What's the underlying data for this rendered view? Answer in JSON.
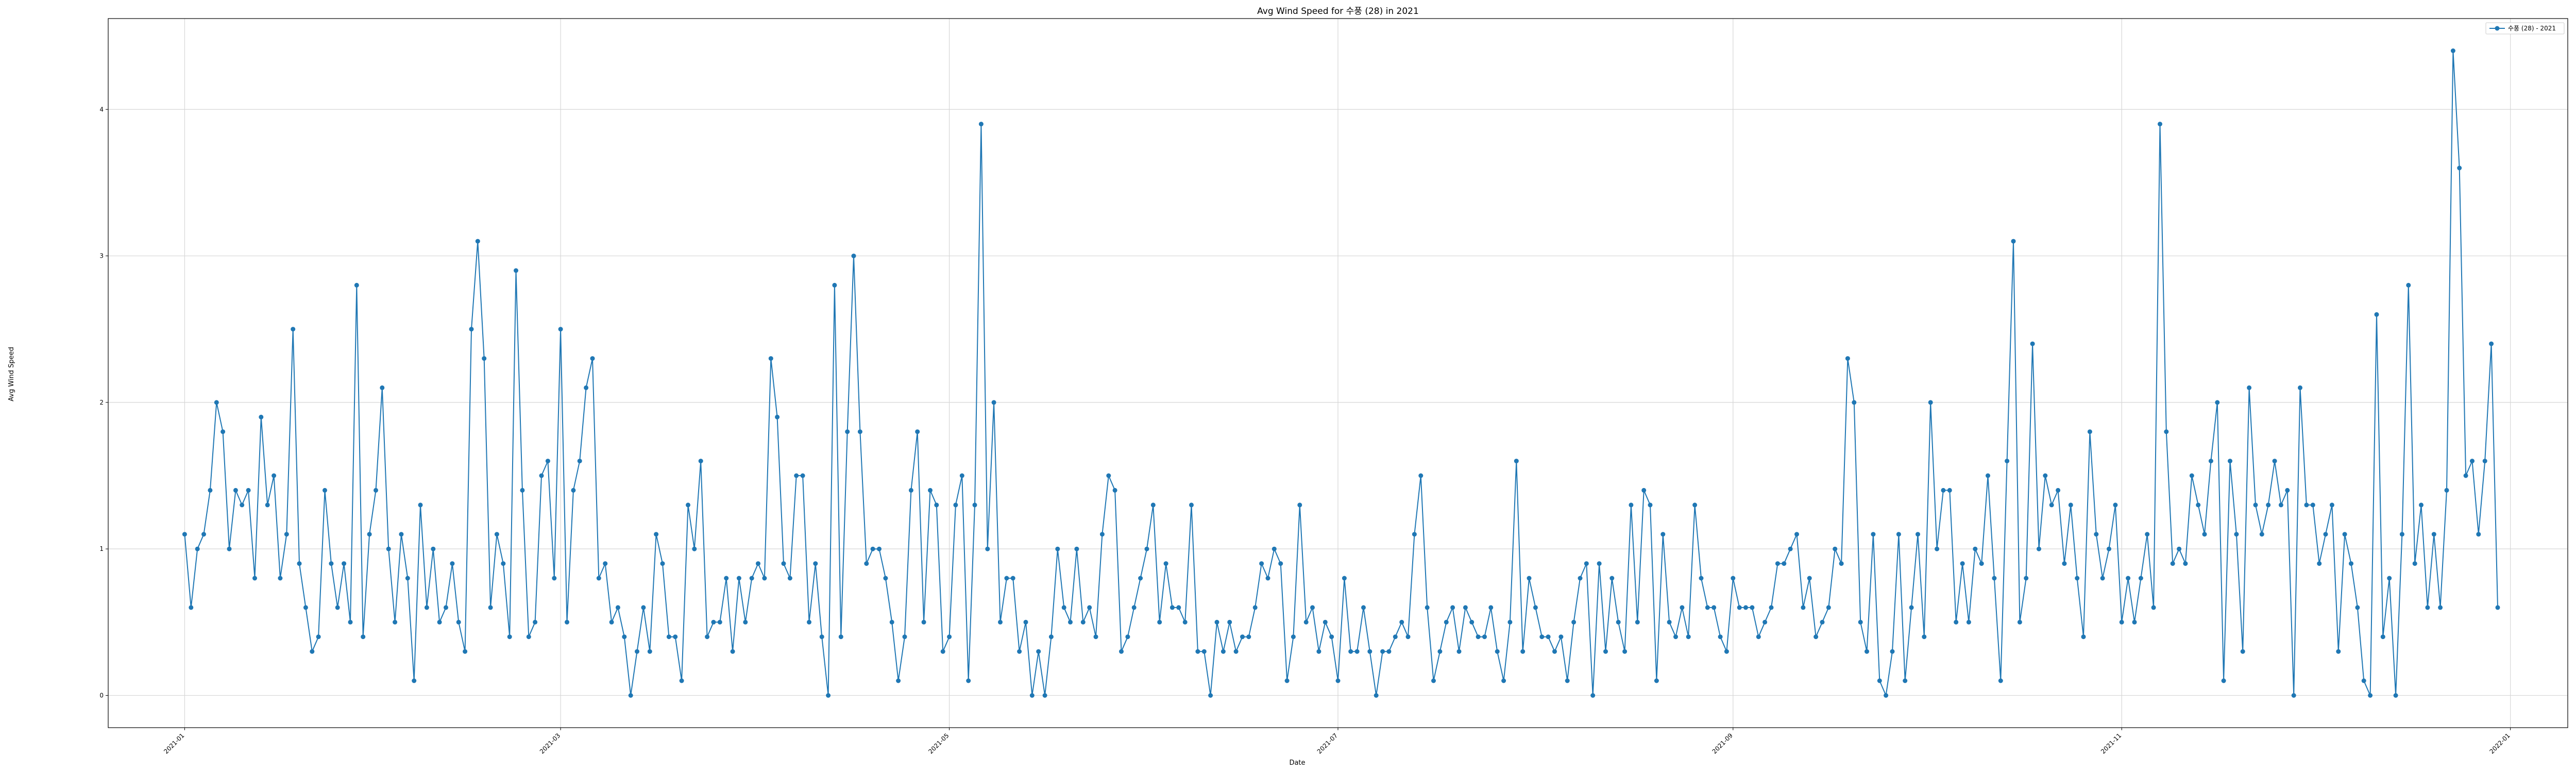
{
  "chart_data": {
    "type": "line",
    "title": "Avg Wind Speed for 수풍 (28) in 2021",
    "xlabel": "Date",
    "ylabel": "Avg Wind Speed",
    "xlim": [
      "2020-12-20",
      "2022-01-10"
    ],
    "ylim": [
      -0.22,
      4.62
    ],
    "grid": true,
    "legend_position": "upper right",
    "series_color": "#1f77b4",
    "xticks": [
      "2021-01-01",
      "2021-03-01",
      "2021-05-01",
      "2021-07-01",
      "2021-09-01",
      "2021-11-01",
      "2022-01-01"
    ],
    "xtick_labels": [
      "2021-01",
      "2021-03",
      "2021-05",
      "2021-07",
      "2021-09",
      "2021-11",
      "2022-01"
    ],
    "yticks": [
      0,
      1,
      2,
      3,
      4
    ],
    "series": [
      {
        "name": "수풍 (28) - 2021",
        "start_date": "2021-01-01",
        "step_days": 1,
        "values": [
          1.1,
          0.6,
          1.0,
          1.1,
          1.4,
          2.0,
          1.8,
          1.0,
          1.4,
          1.3,
          1.4,
          0.8,
          1.9,
          1.3,
          1.5,
          0.8,
          1.1,
          2.5,
          0.9,
          0.6,
          0.3,
          0.4,
          1.4,
          0.9,
          0.6,
          0.9,
          0.5,
          2.8,
          0.4,
          1.1,
          1.4,
          2.1,
          1.0,
          0.5,
          1.1,
          0.8,
          0.1,
          1.3,
          0.6,
          1.0,
          0.5,
          0.6,
          0.9,
          0.5,
          0.3,
          2.5,
          3.1,
          2.3,
          0.6,
          1.1,
          0.9,
          0.4,
          2.9,
          1.4,
          0.4,
          0.5,
          1.5,
          1.6,
          0.8,
          2.5,
          0.5,
          1.4,
          1.6,
          2.1,
          2.3,
          0.8,
          0.9,
          0.5,
          0.6,
          0.4,
          0.0,
          0.3,
          0.6,
          0.3,
          1.1,
          0.9,
          0.4,
          0.4,
          0.1,
          1.3,
          1.0,
          1.6,
          0.4,
          0.5,
          0.5,
          0.8,
          0.3,
          0.8,
          0.5,
          0.8,
          0.9,
          0.8,
          2.3,
          1.9,
          0.9,
          0.8,
          1.5,
          1.5,
          0.5,
          0.9,
          0.4,
          0.0,
          2.8,
          0.4,
          1.8,
          3.0,
          1.8,
          0.9,
          1.0,
          1.0,
          0.8,
          0.5,
          0.1,
          0.4,
          1.4,
          1.8,
          0.5,
          1.4,
          1.3,
          0.3,
          0.4,
          1.3,
          1.5,
          0.1,
          1.3,
          3.9,
          1.0,
          2.0,
          0.5,
          0.8,
          0.8,
          0.3,
          0.5,
          0.0,
          0.3,
          0.0,
          0.4,
          1.0,
          0.6,
          0.5,
          1.0,
          0.5,
          0.6,
          0.4,
          1.1,
          1.5,
          1.4,
          0.3,
          0.4,
          0.6,
          0.8,
          1.0,
          1.3,
          0.5,
          0.9,
          0.6,
          0.6,
          0.5,
          1.3,
          0.3,
          0.3,
          0.0,
          0.5,
          0.3,
          0.5,
          0.3,
          0.4,
          0.4,
          0.6,
          0.9,
          0.8,
          1.0,
          0.9,
          0.1,
          0.4,
          1.3,
          0.5,
          0.6,
          0.3,
          0.5,
          0.4,
          0.1,
          0.8,
          0.3,
          0.3,
          0.6,
          0.3,
          0.0,
          0.3,
          0.3,
          0.4,
          0.5,
          0.4,
          1.1,
          1.5,
          0.6,
          0.1,
          0.3,
          0.5,
          0.6,
          0.3,
          0.6,
          0.5,
          0.4,
          0.4,
          0.6,
          0.3,
          0.1,
          0.5,
          1.6,
          0.3,
          0.8,
          0.6,
          0.4,
          0.4,
          0.3,
          0.4,
          0.1,
          0.5,
          0.8,
          0.9,
          0.0,
          0.9,
          0.3,
          0.8,
          0.5,
          0.3,
          1.3,
          0.5,
          1.4,
          1.3,
          0.1,
          1.1,
          0.5,
          0.4,
          0.6,
          0.4,
          1.3,
          0.8,
          0.6,
          0.6,
          0.4,
          0.3,
          0.8,
          0.6,
          0.6,
          0.6,
          0.4,
          0.5,
          0.6,
          0.9,
          0.9,
          1.0,
          1.1,
          0.6,
          0.8,
          0.4,
          0.5,
          0.6,
          1.0,
          0.9,
          2.3,
          2.0,
          0.5,
          0.3,
          1.1,
          0.1,
          0.0,
          0.3,
          1.1,
          0.1,
          0.6,
          1.1,
          0.4,
          2.0,
          1.0,
          1.4,
          1.4,
          0.5,
          0.9,
          0.5,
          1.0,
          0.9,
          1.5,
          0.8,
          0.1,
          1.6,
          3.1,
          0.5,
          0.8,
          2.4,
          1.0,
          1.5,
          1.3,
          1.4,
          0.9,
          1.3,
          0.8,
          0.4,
          1.8,
          1.1,
          0.8,
          1.0,
          1.3,
          0.5,
          0.8,
          0.5,
          0.8,
          1.1,
          0.6,
          3.9,
          1.8,
          0.9,
          1.0,
          0.9,
          1.5,
          1.3,
          1.1,
          1.6,
          2.0,
          0.1,
          1.6,
          1.1,
          0.3,
          2.1,
          1.3,
          1.1,
          1.3,
          1.6,
          1.3,
          1.4,
          0.0,
          2.1,
          1.3,
          1.3,
          0.9,
          1.1,
          1.3,
          0.3,
          1.1,
          0.9,
          0.6,
          0.1,
          0.0,
          2.6,
          0.4,
          0.8,
          0.0,
          1.1,
          2.8,
          0.9,
          1.3,
          0.6,
          1.1,
          0.6,
          1.4,
          4.4,
          3.6,
          1.5,
          1.6,
          1.1,
          1.6,
          2.4,
          0.6
        ]
      }
    ]
  }
}
